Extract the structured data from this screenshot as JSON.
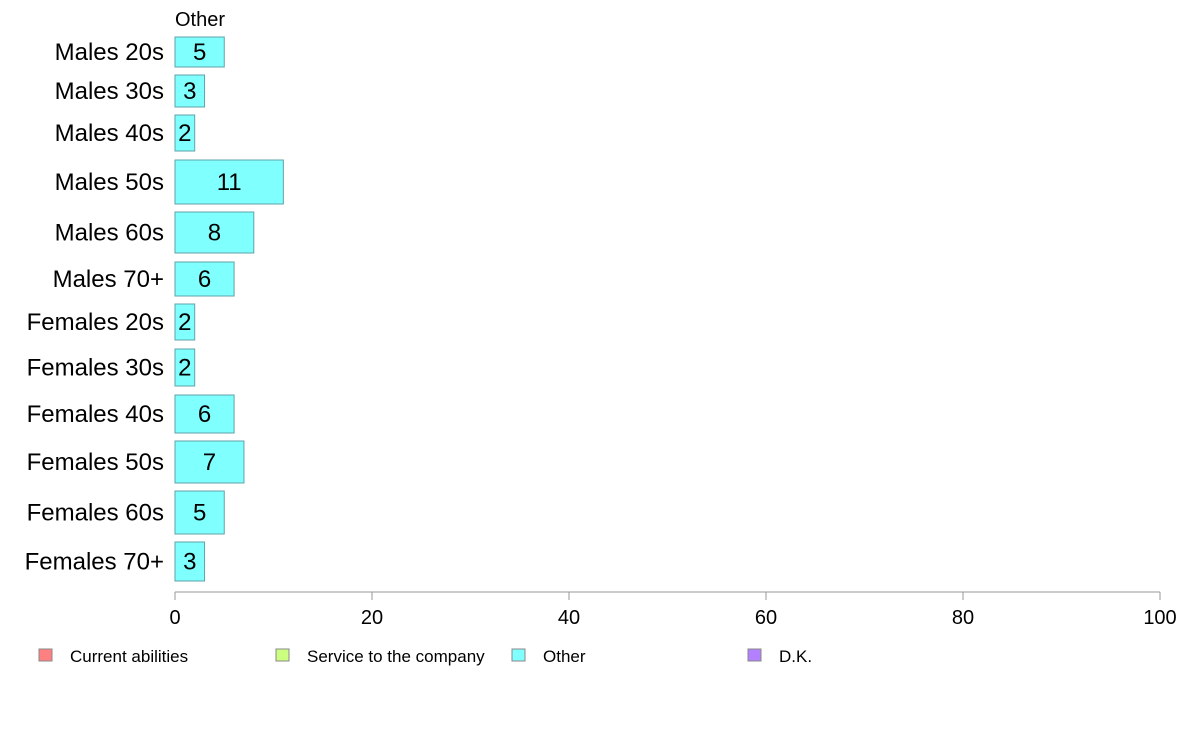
{
  "chart_data": {
    "type": "bar",
    "orientation": "horizontal",
    "panel_title": "Other",
    "categories": [
      "Males 20s",
      "Males 30s",
      "Males 40s",
      "Males 50s",
      "Males 60s",
      "Males 70+",
      "Females 20s",
      "Females 30s",
      "Females 40s",
      "Females 50s",
      "Females 60s",
      "Females 70+"
    ],
    "series": [
      {
        "name": "Other",
        "color": "#80ffff",
        "values": [
          5,
          3,
          2,
          11,
          8,
          6,
          2,
          2,
          6,
          7,
          5,
          3
        ]
      }
    ],
    "value_labels": [
      "5",
      "3",
      "2",
      "11",
      "8",
      "6",
      "2",
      "2",
      "6",
      "7",
      "5",
      "3"
    ],
    "xlim": [
      0,
      100
    ],
    "x_ticks": [
      0,
      20,
      40,
      60,
      80,
      100
    ],
    "grid": false,
    "legend": {
      "position": "bottom",
      "items": [
        {
          "label": "Current abilities",
          "color": "#ff8080"
        },
        {
          "label": "Service to the company",
          "color": "#ccff80"
        },
        {
          "label": "Other",
          "color": "#80ffff"
        },
        {
          "label": "D.K.",
          "color": "#b380ff"
        }
      ]
    }
  }
}
